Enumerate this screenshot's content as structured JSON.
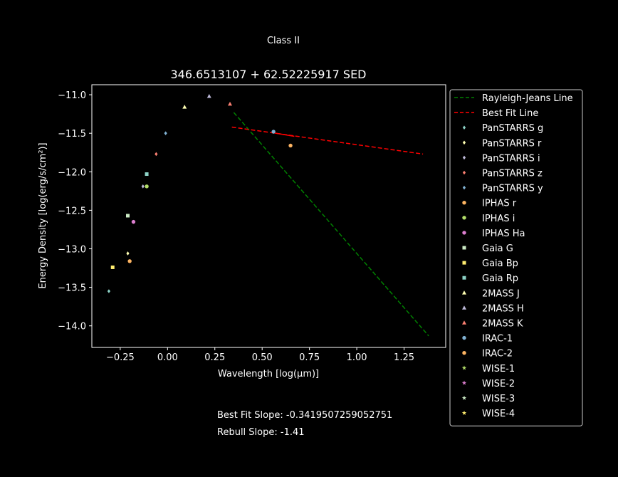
{
  "suptitle": "Class II",
  "footnotes": {
    "best_fit": "Best Fit Slope: -0.3419507259052751",
    "rebull": "Rebull Slope: -1.41"
  },
  "chart_data": {
    "type": "scatter",
    "title": "346.6513107 + 62.52225917 SED",
    "xlabel": "Wavelength [log(μm)]",
    "ylabel": "Energy Density [log(erg/s/cm²)]",
    "xlim": [
      -0.4,
      1.47
    ],
    "ylim": [
      -14.28,
      -10.87
    ],
    "xticks": [
      -0.25,
      0.0,
      0.25,
      0.5,
      0.75,
      1.0,
      1.25
    ],
    "xtick_labels": [
      "−0.25",
      "0.00",
      "0.25",
      "0.50",
      "0.75",
      "1.00",
      "1.25"
    ],
    "yticks": [
      -11.0,
      -11.5,
      -12.0,
      -12.5,
      -13.0,
      -13.5,
      -14.0
    ],
    "ytick_labels": [
      "−11.0",
      "−11.5",
      "−12.0",
      "−12.5",
      "−13.0",
      "−13.5",
      "−14.0"
    ],
    "grid": false,
    "legend_position": "outside right",
    "background": "#000000",
    "foreground": "#ffffff",
    "lines": [
      {
        "name": "Rayleigh-Jeans Line",
        "color": "#008000",
        "style": "dashed",
        "x": [
          0.35,
          1.38
        ],
        "y": [
          -11.23,
          -14.13
        ]
      },
      {
        "name": "Best Fit Line",
        "color": "#ff0000",
        "style": "dashed",
        "x": [
          0.34,
          1.35
        ],
        "y": [
          -11.42,
          -11.77
        ]
      },
      {
        "name": "",
        "color": "#ff0000",
        "style": "solid",
        "x": [
          0.55,
          0.67
        ],
        "y": [
          -11.49,
          -11.54
        ]
      }
    ],
    "series": [
      {
        "name": "PanSTARRS g",
        "marker": "diamond",
        "color": "#8dd3c7",
        "points": [
          [
            -0.31,
            -13.55
          ]
        ]
      },
      {
        "name": "PanSTARRS r",
        "marker": "diamond",
        "color": "#ffffb3",
        "points": [
          [
            -0.21,
            -13.06
          ]
        ]
      },
      {
        "name": "PanSTARRS i",
        "marker": "diamond",
        "color": "#bebada",
        "points": [
          [
            -0.13,
            -12.19
          ]
        ]
      },
      {
        "name": "PanSTARRS z",
        "marker": "diamond",
        "color": "#fb8072",
        "points": [
          [
            -0.06,
            -11.77
          ]
        ]
      },
      {
        "name": "PanSTARRS y",
        "marker": "diamond",
        "color": "#80b1d3",
        "points": [
          [
            -0.01,
            -11.5
          ]
        ]
      },
      {
        "name": "IPHAS r",
        "marker": "circle",
        "color": "#fdb462",
        "points": [
          [
            -0.2,
            -13.16
          ]
        ]
      },
      {
        "name": "IPHAS i",
        "marker": "circle",
        "color": "#b3de69",
        "points": [
          [
            -0.11,
            -12.19
          ]
        ]
      },
      {
        "name": "IPHAS Ha",
        "marker": "circle",
        "color": "#dd7fd0",
        "points": [
          [
            -0.18,
            -12.65
          ]
        ]
      },
      {
        "name": "Gaia G",
        "marker": "square",
        "color": "#ccebc5",
        "points": [
          [
            -0.21,
            -12.57
          ]
        ]
      },
      {
        "name": "Gaia Bp",
        "marker": "square",
        "color": "#ffed6f",
        "points": [
          [
            -0.29,
            -13.24
          ]
        ]
      },
      {
        "name": "Gaia Rp",
        "marker": "square",
        "color": "#8dd3c7",
        "points": [
          [
            -0.11,
            -12.03
          ]
        ]
      },
      {
        "name": "2MASS J",
        "marker": "triangle",
        "color": "#ffffb3",
        "points": [
          [
            0.09,
            -11.16
          ]
        ]
      },
      {
        "name": "2MASS H",
        "marker": "triangle",
        "color": "#bebada",
        "points": [
          [
            0.22,
            -11.02
          ]
        ]
      },
      {
        "name": "2MASS K",
        "marker": "triangle",
        "color": "#fb8072",
        "points": [
          [
            0.33,
            -11.12
          ]
        ]
      },
      {
        "name": "IRAC-1",
        "marker": "circle",
        "color": "#80b1d3",
        "points": [
          [
            0.56,
            -11.48
          ]
        ]
      },
      {
        "name": "IRAC-2",
        "marker": "circle",
        "color": "#fdb462",
        "points": [
          [
            0.65,
            -11.66
          ]
        ]
      },
      {
        "name": "WISE-1",
        "marker": "star",
        "color": "#b3de69",
        "points": []
      },
      {
        "name": "WISE-2",
        "marker": "star",
        "color": "#dd7fd0",
        "points": []
      },
      {
        "name": "WISE-3",
        "marker": "star",
        "color": "#ccebc5",
        "points": []
      },
      {
        "name": "WISE-4",
        "marker": "star",
        "color": "#ffed6f",
        "points": []
      }
    ]
  }
}
